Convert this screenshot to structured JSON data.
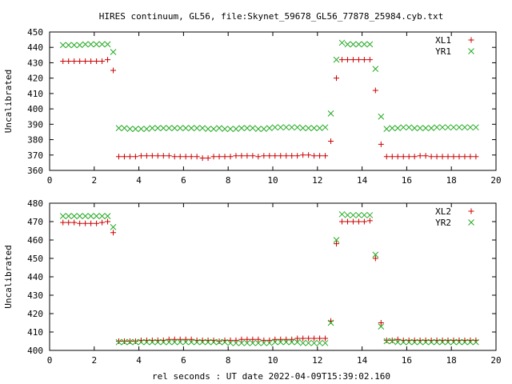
{
  "title": "HIRES continuum, GL56, file:Skynet_59678_GL56_77878_25984.cyb.txt",
  "xlabel": "rel seconds : UT date 2022-04-09T15:39:02.160",
  "colors": {
    "series1": "#cc0000",
    "series2": "#22aa22",
    "axis": "#000000"
  },
  "chart_data": [
    {
      "type": "scatter",
      "ylabel": "Uncalibrated",
      "xlim": [
        0,
        20
      ],
      "ylim": [
        360,
        450
      ],
      "xticks": [
        0,
        2,
        4,
        6,
        8,
        10,
        12,
        14,
        16,
        18,
        20
      ],
      "yticks": [
        360,
        370,
        380,
        390,
        400,
        410,
        420,
        430,
        440,
        450
      ],
      "legend_position": "top-right",
      "series": [
        {
          "name": "XL1",
          "marker": "plus",
          "x": [
            0.6,
            0.85,
            1.1,
            1.35,
            1.6,
            1.85,
            2.1,
            2.35,
            2.6,
            2.85,
            3.1,
            3.35,
            3.6,
            3.85,
            4.1,
            4.35,
            4.6,
            4.85,
            5.1,
            5.35,
            5.6,
            5.85,
            6.1,
            6.35,
            6.6,
            6.85,
            7.1,
            7.35,
            7.6,
            7.85,
            8.1,
            8.35,
            8.6,
            8.85,
            9.1,
            9.35,
            9.6,
            9.85,
            10.1,
            10.35,
            10.6,
            10.85,
            11.1,
            11.35,
            11.6,
            11.85,
            12.1,
            12.35,
            12.6,
            12.85,
            13.1,
            13.35,
            13.6,
            13.85,
            14.1,
            14.35,
            14.6,
            14.85,
            15.1,
            15.35,
            15.6,
            15.85,
            16.1,
            16.35,
            16.6,
            16.85,
            17.1,
            17.35,
            17.6,
            17.85,
            18.1,
            18.35,
            18.6,
            18.85,
            19.1
          ],
          "y": [
            431,
            431,
            431,
            431,
            431,
            431,
            431,
            431,
            432,
            425,
            369,
            369,
            369,
            369,
            369.5,
            369.5,
            369.5,
            369.5,
            369.5,
            369.5,
            369,
            369,
            369,
            369,
            369,
            368,
            368,
            369,
            369,
            369,
            369,
            369.5,
            369.5,
            369.5,
            369.5,
            369,
            369.5,
            369.5,
            369.5,
            369.5,
            369.5,
            369.5,
            369.5,
            370,
            370,
            369.5,
            369.5,
            369.5,
            379,
            420,
            432,
            432,
            432,
            432,
            432,
            432,
            412,
            377,
            369,
            369,
            369,
            369,
            369,
            369,
            369.5,
            369.5,
            369,
            369,
            369,
            369,
            369,
            369,
            369,
            369,
            369
          ]
        },
        {
          "name": "YR1",
          "marker": "cross",
          "x": [
            0.6,
            0.85,
            1.1,
            1.35,
            1.6,
            1.85,
            2.1,
            2.35,
            2.6,
            2.85,
            3.1,
            3.35,
            3.6,
            3.85,
            4.1,
            4.35,
            4.6,
            4.85,
            5.1,
            5.35,
            5.6,
            5.85,
            6.1,
            6.35,
            6.6,
            6.85,
            7.1,
            7.35,
            7.6,
            7.85,
            8.1,
            8.35,
            8.6,
            8.85,
            9.1,
            9.35,
            9.6,
            9.85,
            10.1,
            10.35,
            10.6,
            10.85,
            11.1,
            11.35,
            11.6,
            11.85,
            12.1,
            12.35,
            12.6,
            12.85,
            13.1,
            13.35,
            13.6,
            13.85,
            14.1,
            14.35,
            14.6,
            14.85,
            15.1,
            15.35,
            15.6,
            15.85,
            16.1,
            16.35,
            16.6,
            16.85,
            17.1,
            17.35,
            17.6,
            17.85,
            18.1,
            18.35,
            18.6,
            18.85,
            19.1
          ],
          "y": [
            441.5,
            441.5,
            441.5,
            441.5,
            442,
            442,
            442,
            442,
            442,
            437,
            387.5,
            387.5,
            387,
            387,
            387,
            387,
            387.5,
            387.5,
            387.5,
            387.5,
            387.5,
            387.5,
            387.5,
            387.5,
            387.5,
            387.5,
            387,
            387,
            387.5,
            387,
            387,
            387,
            387.5,
            387.5,
            387.5,
            387,
            387,
            387.5,
            388,
            388,
            388,
            388,
            388,
            387.5,
            387.5,
            387.5,
            387.5,
            388,
            397,
            432,
            443,
            442,
            442,
            442,
            442,
            442,
            426,
            395,
            387,
            387.5,
            387.5,
            388,
            388,
            387.5,
            387.5,
            387.5,
            387.5,
            388,
            388,
            388,
            388,
            388,
            388,
            388,
            388
          ]
        }
      ]
    },
    {
      "type": "scatter",
      "ylabel": "Uncalibrated",
      "xlim": [
        0,
        20
      ],
      "ylim": [
        400,
        480
      ],
      "xticks": [
        0,
        2,
        4,
        6,
        8,
        10,
        12,
        14,
        16,
        18,
        20
      ],
      "yticks": [
        400,
        410,
        420,
        430,
        440,
        450,
        460,
        470,
        480
      ],
      "legend_position": "top-right",
      "series": [
        {
          "name": "XL2",
          "marker": "plus",
          "x": [
            0.6,
            0.85,
            1.1,
            1.35,
            1.6,
            1.85,
            2.1,
            2.35,
            2.6,
            2.85,
            3.1,
            3.35,
            3.6,
            3.85,
            4.1,
            4.35,
            4.6,
            4.85,
            5.1,
            5.35,
            5.6,
            5.85,
            6.1,
            6.35,
            6.6,
            6.85,
            7.1,
            7.35,
            7.6,
            7.85,
            8.1,
            8.35,
            8.6,
            8.85,
            9.1,
            9.35,
            9.6,
            9.85,
            10.1,
            10.35,
            10.6,
            10.85,
            11.1,
            11.35,
            11.6,
            11.85,
            12.1,
            12.35,
            12.6,
            12.85,
            13.1,
            13.35,
            13.6,
            13.85,
            14.1,
            14.35,
            14.6,
            14.85,
            15.1,
            15.35,
            15.6,
            15.85,
            16.1,
            16.35,
            16.6,
            16.85,
            17.1,
            17.35,
            17.6,
            17.85,
            18.1,
            18.35,
            18.6,
            18.85,
            19.1
          ],
          "y": [
            469.5,
            469.5,
            469.5,
            469,
            469,
            469,
            469,
            469.5,
            470,
            464,
            405,
            405,
            405,
            405,
            405.5,
            405.5,
            405.5,
            405.5,
            405.5,
            406,
            406,
            406,
            406,
            406,
            405.5,
            405.5,
            405.5,
            405.5,
            405,
            405.5,
            405.5,
            405.5,
            406,
            406,
            406,
            406,
            405.5,
            405.5,
            406,
            406,
            406,
            406,
            406.5,
            406.5,
            406.5,
            406.5,
            406.5,
            406.5,
            416,
            458,
            470,
            470,
            470,
            470,
            470,
            470.5,
            450,
            415,
            405.5,
            405.5,
            406,
            405.5,
            405.5,
            405.5,
            405.5,
            405.5,
            405.5,
            405.5,
            405.5,
            405.5,
            405.5,
            405.5,
            405.5,
            405.5,
            405.5
          ]
        },
        {
          "name": "YR2",
          "marker": "cross",
          "x": [
            0.6,
            0.85,
            1.1,
            1.35,
            1.6,
            1.85,
            2.1,
            2.35,
            2.6,
            2.85,
            3.1,
            3.35,
            3.6,
            3.85,
            4.1,
            4.35,
            4.6,
            4.85,
            5.1,
            5.35,
            5.6,
            5.85,
            6.1,
            6.35,
            6.6,
            6.85,
            7.1,
            7.35,
            7.6,
            7.85,
            8.1,
            8.35,
            8.6,
            8.85,
            9.1,
            9.35,
            9.6,
            9.85,
            10.1,
            10.35,
            10.6,
            10.85,
            11.1,
            11.35,
            11.6,
            11.85,
            12.1,
            12.35,
            12.6,
            12.85,
            13.1,
            13.35,
            13.6,
            13.85,
            14.1,
            14.35,
            14.6,
            14.85,
            15.1,
            15.35,
            15.6,
            15.85,
            16.1,
            16.35,
            16.6,
            16.85,
            17.1,
            17.35,
            17.6,
            17.85,
            18.1,
            18.35,
            18.6,
            18.85,
            19.1
          ],
          "y": [
            473,
            473,
            473,
            473,
            473,
            473,
            473,
            473,
            473,
            467,
            404.5,
            404.5,
            404.5,
            404.5,
            404.5,
            404.5,
            404.5,
            404.5,
            404.5,
            404.5,
            404.5,
            404.5,
            404.5,
            404.5,
            404.5,
            404.5,
            404.5,
            404.5,
            404.5,
            404.5,
            404,
            404,
            404,
            404,
            404,
            404,
            404,
            404,
            404.5,
            404.5,
            404.5,
            404.5,
            404.5,
            404,
            404,
            404,
            404,
            404,
            415,
            460,
            474,
            473.5,
            473.5,
            473.5,
            473.5,
            473.5,
            452,
            413,
            405,
            405,
            404.5,
            404.5,
            404.5,
            404.5,
            404.5,
            404.5,
            404.5,
            404.5,
            404.5,
            404.5,
            404.5,
            404.5,
            404.5,
            404.5,
            404.5
          ]
        }
      ]
    }
  ]
}
